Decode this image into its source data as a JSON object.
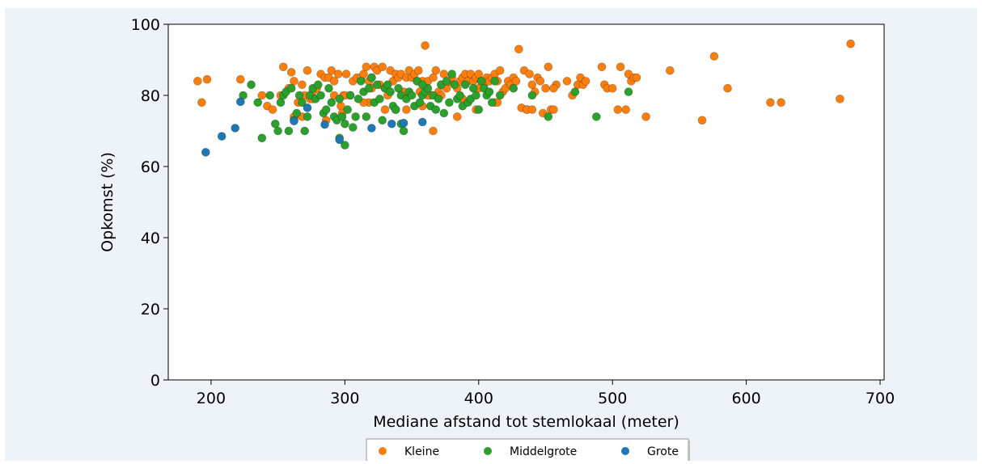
{
  "chart_data": {
    "type": "scatter",
    "title": "",
    "xlabel": "Mediane afstand tot stemlokaal (meter)",
    "ylabel": "Opkomst (%)",
    "xlim": [
      168,
      703
    ],
    "ylim": [
      0,
      100
    ],
    "xticks": [
      200,
      300,
      400,
      500,
      600,
      700
    ],
    "yticks": [
      0,
      20,
      40,
      60,
      80,
      100
    ],
    "grid": false,
    "legend_position": "bottom-center",
    "series": [
      {
        "name": "Kleine",
        "color": "#ff7f0e",
        "x": [
          190,
          193,
          197,
          222,
          238,
          242,
          246,
          252,
          254,
          258,
          260,
          262,
          265,
          268,
          270,
          272,
          274,
          276,
          279,
          282,
          285,
          288,
          290,
          292,
          295,
          297,
          299,
          301,
          304,
          306,
          309,
          312,
          314,
          316,
          318,
          320,
          322,
          324,
          326,
          328,
          330,
          332,
          334,
          336,
          338,
          340,
          342,
          344,
          346,
          348,
          350,
          352,
          354,
          355,
          356,
          358,
          360,
          362,
          364,
          366,
          368,
          370,
          372,
          374,
          376,
          378,
          380,
          382,
          384,
          386,
          388,
          390,
          392,
          394,
          396,
          398,
          400,
          402,
          404,
          406,
          408,
          410,
          412,
          414,
          416,
          418,
          420,
          422,
          424,
          426,
          428,
          430,
          432,
          434,
          436,
          438,
          440,
          442,
          444,
          446,
          448,
          450,
          452,
          454,
          456,
          458,
          466,
          470,
          474,
          476,
          478,
          480,
          492,
          494,
          496,
          500,
          504,
          506,
          510,
          512,
          514,
          516,
          518,
          525,
          543,
          567,
          576,
          586,
          618,
          626,
          670,
          678,
          268,
          286,
          298,
          318,
          330,
          346,
          358,
          366,
          384,
          398,
          412,
          436,
          262,
          276,
          292,
          314,
          338,
          362,
          388,
          414,
          440,
          456,
          300,
          320,
          372,
          400
        ],
        "y": [
          84,
          78,
          84.5,
          84.5,
          80,
          77,
          76,
          80,
          88,
          82,
          86.5,
          84,
          78,
          83,
          80,
          87,
          79,
          81,
          82,
          86,
          85,
          85,
          87,
          84,
          86,
          77,
          80,
          86,
          80,
          84,
          85,
          85,
          86,
          88,
          84,
          85,
          88,
          87,
          83,
          88,
          82,
          80,
          87,
          84,
          86,
          85,
          86,
          81,
          85,
          87,
          85,
          86,
          84,
          87,
          81,
          84,
          94,
          84,
          80,
          85,
          87,
          81,
          83,
          86,
          82,
          84,
          85,
          83,
          82,
          84,
          85,
          86,
          84,
          86,
          84,
          85,
          86,
          84,
          83,
          85,
          84,
          85,
          86,
          84,
          87,
          81,
          82,
          84,
          83,
          85,
          84,
          93,
          76.5,
          87,
          76,
          86,
          83,
          81,
          85,
          84,
          75,
          82,
          88,
          76,
          76,
          83,
          84,
          80,
          83,
          85,
          83,
          84,
          88,
          83,
          82,
          82,
          76,
          88,
          76,
          86,
          84,
          85,
          85,
          74,
          87,
          73,
          91,
          82,
          78,
          78,
          79,
          94.5,
          74,
          73,
          75,
          78,
          76,
          76,
          77,
          70,
          74,
          76,
          78,
          76,
          74,
          79,
          80,
          78,
          76,
          80,
          79,
          78,
          76,
          82,
          80,
          82,
          80,
          82
        ]
      },
      {
        "name": "Middelgrote",
        "color": "#2ca02c",
        "x": [
          224,
          230,
          235,
          238,
          244,
          248,
          250,
          252,
          254,
          256,
          258,
          260,
          262,
          264,
          266,
          268,
          270,
          272,
          274,
          276,
          278,
          280,
          282,
          284,
          286,
          288,
          290,
          292,
          294,
          296,
          298,
          300,
          302,
          304,
          306,
          308,
          310,
          312,
          314,
          316,
          318,
          320,
          322,
          324,
          326,
          328,
          330,
          332,
          334,
          336,
          338,
          340,
          342,
          344,
          346,
          348,
          350,
          352,
          354,
          356,
          358,
          360,
          362,
          364,
          366,
          368,
          370,
          372,
          374,
          376,
          378,
          380,
          382,
          384,
          386,
          388,
          390,
          392,
          394,
          396,
          398,
          400,
          402,
          404,
          406,
          408,
          410,
          412,
          416,
          426,
          440,
          452,
          472,
          488,
          512,
          300,
          296,
          342,
          358
        ],
        "y": [
          80,
          83,
          78,
          68,
          80,
          72,
          70,
          78,
          80,
          81,
          70,
          82,
          73,
          75,
          80,
          78,
          70,
          74,
          80,
          82,
          79,
          83,
          80,
          75,
          76,
          82,
          78,
          74,
          73,
          79,
          74,
          72,
          76,
          80,
          71,
          74,
          79,
          84,
          81,
          74,
          82,
          85,
          78,
          83,
          79,
          73,
          82,
          83,
          81,
          77,
          76,
          82,
          80,
          70,
          79,
          81,
          80,
          77,
          84,
          78,
          80,
          81,
          82,
          77,
          80,
          76,
          79,
          83,
          75,
          84,
          78,
          86,
          83,
          79,
          80,
          77,
          83,
          78,
          79,
          82,
          80,
          76,
          84,
          82,
          80,
          81,
          78,
          84,
          80,
          82,
          80,
          74,
          81,
          74,
          81,
          66,
          68,
          72,
          83
        ]
      },
      {
        "name": "Grote",
        "color": "#1f77b4",
        "x": [
          196,
          208,
          218,
          222,
          262,
          272,
          285,
          296,
          320,
          335,
          344,
          358
        ],
        "y": [
          64,
          68.5,
          70.8,
          78.2,
          72.8,
          76.5,
          71.8,
          67.5,
          70.8,
          72,
          72.2,
          72.5
        ]
      }
    ]
  }
}
